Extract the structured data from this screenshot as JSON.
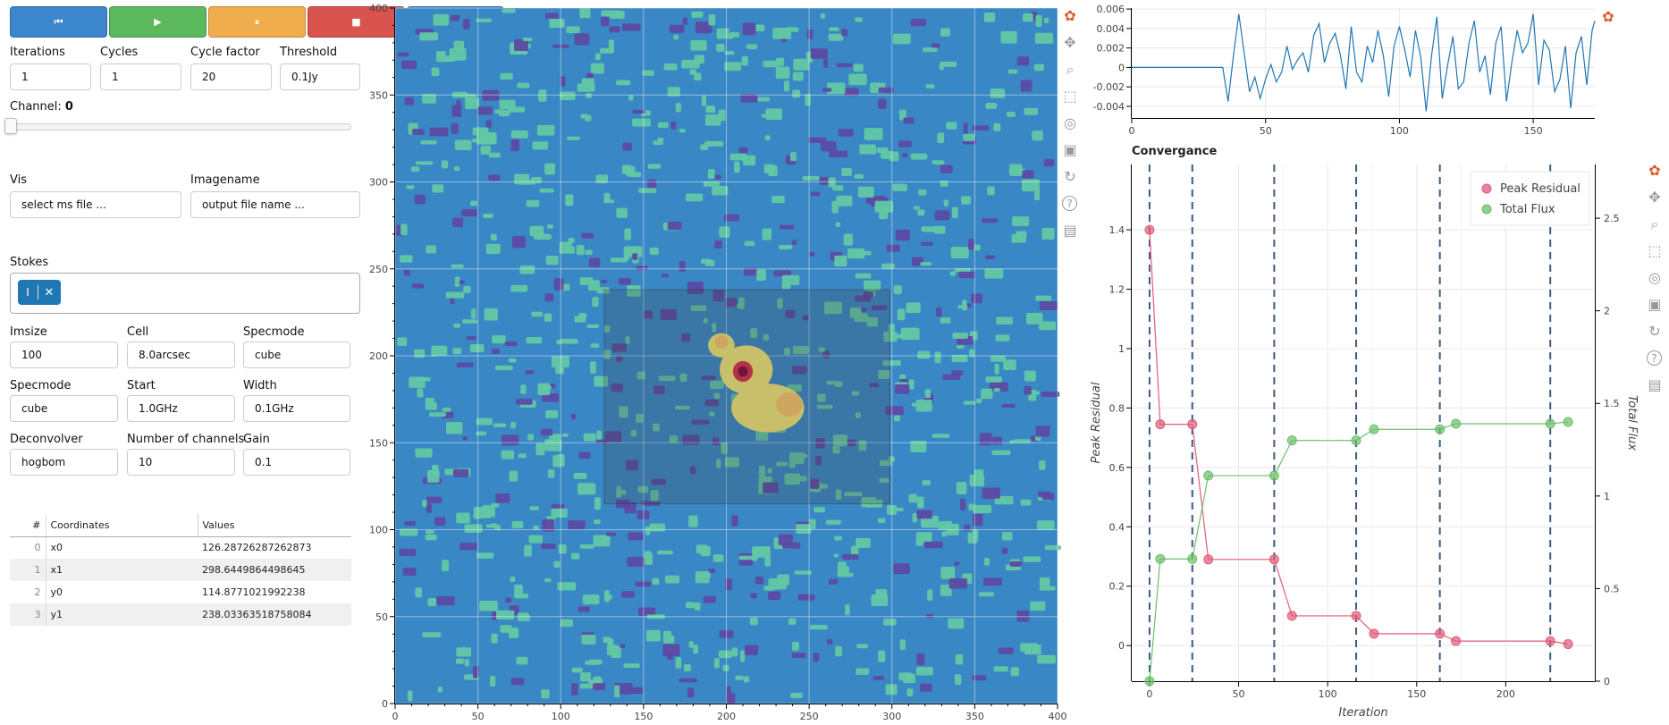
{
  "toolbar": {
    "buttons": [
      {
        "name": "step-back",
        "icon": "skip-back-icon",
        "glyph": "⏮",
        "color": "#3c87cc"
      },
      {
        "name": "play",
        "icon": "play-icon",
        "glyph": "▶",
        "color": "#5cb85c"
      },
      {
        "name": "pause",
        "icon": "pause-icon",
        "glyph": "⏸",
        "color": "#f0ad4e"
      },
      {
        "name": "stop",
        "icon": "stop-icon",
        "glyph": "■",
        "color": "#d9534f"
      },
      {
        "name": "step-forward",
        "icon": "skip-forward-icon",
        "glyph": "⏭",
        "color": "#3c87cc"
      }
    ]
  },
  "params": {
    "iterations": {
      "label": "Iterations",
      "value": "1"
    },
    "cycles": {
      "label": "Cycles",
      "value": "1"
    },
    "cycle_factor": {
      "label": "Cycle factor",
      "value": "20"
    },
    "threshold": {
      "label": "Threshold",
      "value": "0.1Jy"
    },
    "channel": {
      "label": "Channel: ",
      "value": "0"
    },
    "vis": {
      "label": "Vis",
      "value": "select ms file ..."
    },
    "imagename": {
      "label": "Imagename",
      "value": "output file name ..."
    },
    "stokes": {
      "label": "Stokes",
      "chip": "I",
      "remove_glyph": "✕"
    },
    "imsize": {
      "label": "Imsize",
      "value": "100"
    },
    "cell": {
      "label": "Cell",
      "value": "8.0arcsec"
    },
    "specmode1": {
      "label": "Specmode",
      "value": "cube"
    },
    "specmode2": {
      "label": "Specmode",
      "value": "cube"
    },
    "start": {
      "label": "Start",
      "value": "1.0GHz"
    },
    "width": {
      "label": "Width",
      "value": "0.1GHz"
    },
    "deconvolver": {
      "label": "Deconvolver",
      "value": "hogbom"
    },
    "nchan": {
      "label": "Number of channels",
      "value": "10"
    },
    "gain": {
      "label": "Gain",
      "value": "0.1"
    }
  },
  "table": {
    "headers": [
      "#",
      "Coordinates",
      "Values"
    ],
    "rows": [
      {
        "idx": "0",
        "coord": "x0",
        "value": "126.28726287262873"
      },
      {
        "idx": "1",
        "coord": "x1",
        "value": "298.6449864498645"
      },
      {
        "idx": "2",
        "coord": "y0",
        "value": "114.8771021992238"
      },
      {
        "idx": "3",
        "coord": "y1",
        "value": "238.03363518758084"
      }
    ]
  },
  "image_plot": {
    "x_ticks": [
      "0",
      "50",
      "100",
      "150",
      "200",
      "250",
      "300",
      "350",
      "400"
    ],
    "y_ticks": [
      "0",
      "50",
      "100",
      "150",
      "200",
      "250",
      "300",
      "350",
      "400"
    ],
    "xlim": [
      0,
      400
    ],
    "ylim": [
      0,
      400
    ],
    "box_select": {
      "x0": 126.28726287262873,
      "x1": 298.6449864498645,
      "y0": 114.8771021992238,
      "y1": 238.03363518758084
    },
    "background_color": "#3a87c5",
    "speckle_colors": [
      "#62c7a5",
      "#5b4aa3"
    ],
    "source_colors": [
      "#efe478",
      "#f9c46a",
      "#d8304a",
      "#7a0c3a"
    ]
  },
  "tools": [
    "bokeh-logo-icon",
    "pan-icon",
    "zoom-icon",
    "box-select-icon",
    "wheel-zoom-icon",
    "save-icon",
    "reset-icon",
    "help-icon",
    "hover-icon"
  ],
  "chart_data": [
    {
      "type": "line",
      "title": "",
      "x_ticks": [
        "0",
        "50",
        "100",
        "150"
      ],
      "y_ticks": [
        "-0.004",
        "-0.002",
        "0",
        "0.002",
        "0.004",
        "0.006"
      ],
      "xlim": [
        0,
        173
      ],
      "ylim": [
        -0.0052,
        0.0061
      ],
      "series": [
        {
          "color": "#1f77b4",
          "x": [
            0,
            5,
            10,
            15,
            20,
            25,
            30,
            34,
            36,
            38,
            40,
            42,
            44,
            46,
            48,
            50,
            52,
            54,
            56,
            58,
            60,
            62,
            64,
            66,
            68,
            70,
            72,
            74,
            76,
            78,
            80,
            82,
            84,
            86,
            88,
            90,
            92,
            94,
            96,
            98,
            100,
            102,
            104,
            106,
            108,
            110,
            112,
            114,
            116,
            118,
            120,
            122,
            124,
            126,
            128,
            130,
            132,
            134,
            136,
            138,
            140,
            142,
            144,
            146,
            148,
            150,
            152,
            154,
            156,
            158,
            160,
            162,
            164,
            166,
            168,
            170,
            172,
            173
          ],
          "y": [
            0,
            0,
            0,
            0,
            0,
            0,
            0,
            0,
            -0.0035,
            0.0012,
            0.0055,
            0.0015,
            -0.0025,
            -0.001,
            -0.0032,
            -0.0012,
            0.0003,
            -0.0015,
            -0.0005,
            0.0022,
            -0.0002,
            0.0008,
            0.0015,
            -0.0005,
            0.0033,
            0.0045,
            0.0005,
            0.0025,
            0.0035,
            0.0012,
            -0.0022,
            0.0042,
            -0.0005,
            -0.0015,
            0.0022,
            0.0005,
            0.0038,
            0.0012,
            -0.003,
            0.0022,
            0.0042,
            0.0018,
            -0.001,
            0.0038,
            0.001,
            -0.0045,
            0.0012,
            0.0052,
            -0.0032,
            0.0002,
            0.0032,
            -0.0022,
            -0.0015,
            0.0025,
            0.0048,
            -0.0005,
            0.0012,
            -0.0028,
            0.0025,
            0.0042,
            -0.0035,
            0.0005,
            0.0038,
            0.0015,
            0.0025,
            0.0055,
            -0.0018,
            0.0028,
            0.0018,
            -0.0025,
            -0.0012,
            0.0022,
            -0.0042,
            0.0015,
            0.0032,
            -0.0018,
            0.0038,
            0.0048
          ]
        }
      ]
    },
    {
      "type": "line",
      "title": "Convergance",
      "xlabel": "Iteration",
      "ylabel": "Peak Residual",
      "y2label": "Total Flux",
      "legend_position": "top-right",
      "x_ticks": [
        "0",
        "50",
        "100",
        "150",
        "200"
      ],
      "y_ticks": [
        "0",
        "0.2",
        "0.4",
        "0.6",
        "0.8",
        "1",
        "1.2",
        "1.4"
      ],
      "y2_ticks": [
        "0",
        "0.5",
        "1",
        "1.5",
        "2",
        "2.5"
      ],
      "xlim": [
        -10,
        250
      ],
      "ylim": [
        -0.12,
        1.62
      ],
      "y2lim": [
        0,
        2.79
      ],
      "vlines": [
        0,
        24,
        70,
        116,
        163,
        225
      ],
      "series": [
        {
          "name": "Peak Residual",
          "color": "#e05c7a",
          "x": [
            0,
            6,
            24,
            33,
            70,
            80,
            116,
            126,
            163,
            172,
            225,
            235
          ],
          "y": [
            1.4,
            0.745,
            0.745,
            0.29,
            0.29,
            0.1,
            0.1,
            0.04,
            0.04,
            0.015,
            0.015,
            0.005
          ]
        },
        {
          "name": "Total Flux",
          "color": "#6bbf6b",
          "x": [
            0,
            6,
            24,
            33,
            70,
            80,
            116,
            126,
            163,
            172,
            225,
            235
          ],
          "y": [
            0.0,
            0.66,
            0.66,
            1.11,
            1.11,
            1.3,
            1.3,
            1.36,
            1.36,
            1.39,
            1.39,
            1.4
          ]
        }
      ]
    }
  ]
}
